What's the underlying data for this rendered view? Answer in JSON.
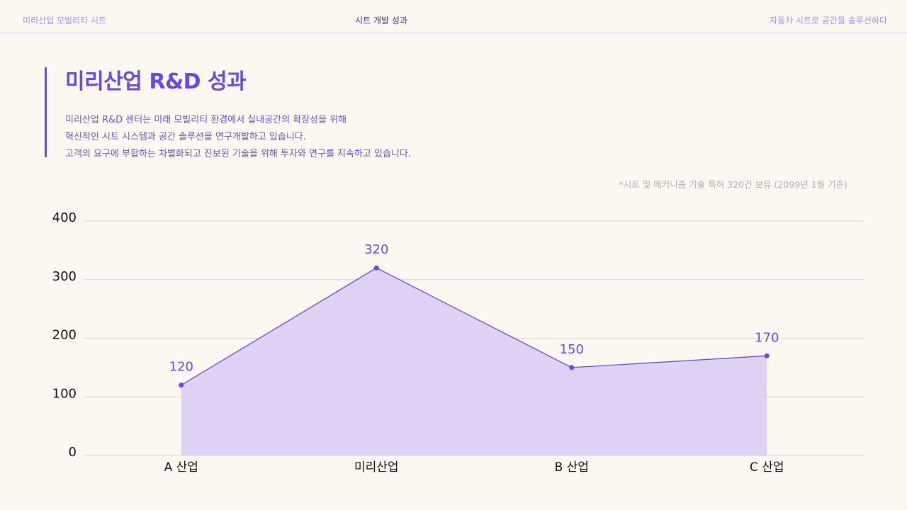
{
  "header": {
    "left": "미리산업 모빌리티 시트",
    "center": "시트 개발 성과",
    "right": "자동차 시트로 공간을 솔루션하다"
  },
  "intro": {
    "title": "미리산업 R&D 성과",
    "lines": [
      "미리산업 R&D 센터는 미래 모빌리티 환경에서 실내공간의 확장성을 위해",
      "혁신적인 시트 시스템과 공간 솔루션을 연구개발하고 있습니다.",
      "고객의 요구에 부합하는 차별화되고 진보된 기술을 위해 투자와 연구를 지속하고 있습니다."
    ],
    "note": "*시트 및 메커니즘 기술 특허 320건 보유 (2099년 1월 기준)"
  },
  "chart_data": {
    "type": "area",
    "categories": [
      "A 산업",
      "미리산업",
      "B 산업",
      "C 산업"
    ],
    "values": [
      120,
      320,
      150,
      170
    ],
    "color": "#6a45e8",
    "fill": "#d9cbf6",
    "ylim": [
      0,
      400
    ],
    "yticks": [
      0,
      100,
      200,
      300,
      400
    ],
    "grid": true
  }
}
